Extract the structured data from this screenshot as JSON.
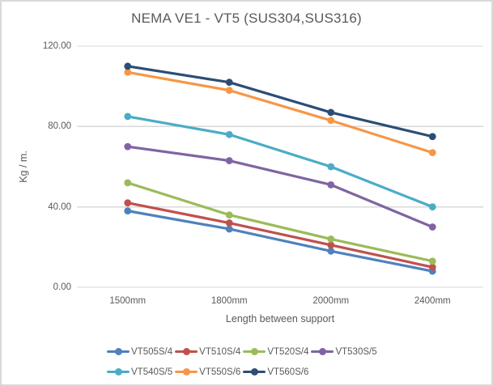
{
  "chart_data": {
    "type": "line",
    "title": "NEMA VE1 - VT5 (SUS304,SUS316)",
    "xlabel": "Length between support",
    "ylabel": "Kg / m.",
    "categories": [
      "1500mm",
      "1800mm",
      "2000mm",
      "2400mm"
    ],
    "y_ticks": [
      {
        "label": "0.00",
        "value": 0
      },
      {
        "label": "40.00",
        "value": 40
      },
      {
        "label": "80.00",
        "value": 80
      },
      {
        "label": "120.00",
        "value": 120
      }
    ],
    "ylim": [
      0,
      120
    ],
    "grid": true,
    "legend_position": "bottom",
    "marker": "circle",
    "colors": {
      "grid": "#d9d9d9",
      "text": "#595959"
    },
    "series": [
      {
        "name": "VT505S/4",
        "color": "#4F81BD",
        "values": [
          38,
          29,
          18,
          8
        ]
      },
      {
        "name": "VT510S/4",
        "color": "#C0504D",
        "values": [
          42,
          32,
          21,
          10
        ]
      },
      {
        "name": "VT520S/4",
        "color": "#9BBB59",
        "values": [
          52,
          36,
          24,
          13
        ]
      },
      {
        "name": "VT530S/5",
        "color": "#8064A2",
        "values": [
          70,
          63,
          51,
          30
        ]
      },
      {
        "name": "VT540S/5",
        "color": "#4BACC6",
        "values": [
          85,
          76,
          60,
          40
        ]
      },
      {
        "name": "VT550S/6",
        "color": "#F79646",
        "values": [
          107,
          98,
          83,
          67
        ]
      },
      {
        "name": "VT560S/6",
        "color": "#2C4D75",
        "values": [
          110,
          102,
          87,
          75
        ]
      }
    ]
  }
}
